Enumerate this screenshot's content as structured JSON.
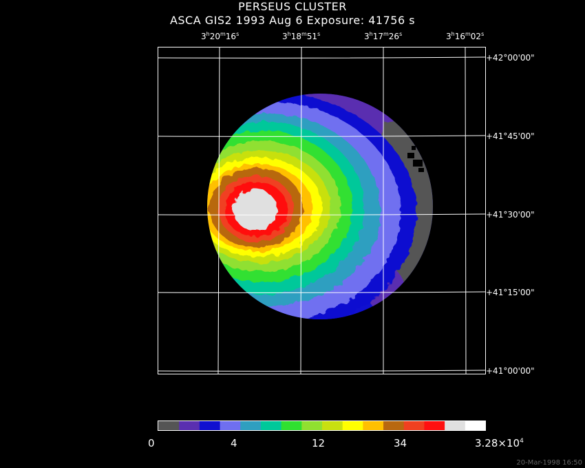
{
  "title": "PERSEUS CLUSTER",
  "subtitle": "ASCA GIS2   1993 Aug  6    Exposure: 41756 s",
  "ra_ticks": [
    {
      "h": "3",
      "m": "20",
      "s": "16"
    },
    {
      "h": "3",
      "m": "18",
      "s": "51"
    },
    {
      "h": "3",
      "m": "17",
      "s": "26"
    },
    {
      "h": "3",
      "m": "16",
      "s": "02"
    }
  ],
  "dec_ticks": [
    "+42°00'00\"",
    "+41°45'00\"",
    "+41°30'00\"",
    "+41°15'00\"",
    "+41°00'00\""
  ],
  "colorbar": {
    "labels": [
      "0",
      "4",
      "12",
      "34"
    ],
    "max_label": "3.28×10",
    "max_exponent": "4",
    "colors": [
      "#555555",
      "#5a2fb0",
      "#1010d0",
      "#6f6ff0",
      "#2f9fc0",
      "#00c89a",
      "#30e030",
      "#90e030",
      "#c8e010",
      "#ffff00",
      "#ffc000",
      "#b86810",
      "#f04020",
      "#ff1010",
      "#e0e0e0",
      "#ffffff"
    ]
  },
  "timestamp": "20-Mar-1998 16:50"
}
